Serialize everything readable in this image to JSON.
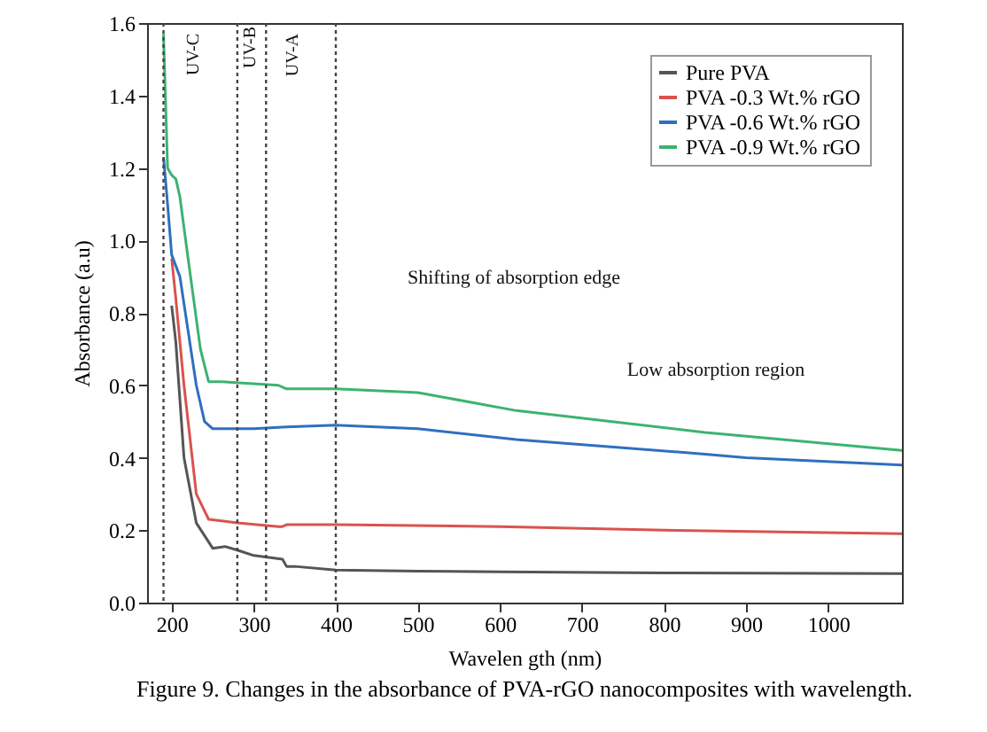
{
  "chart_data": {
    "type": "line",
    "title": "Figure 9. Changes in the absorbance of PVA-rGO nanocomposites with wavelength.",
    "xlabel": "Wavelen gth (nm)",
    "ylabel": "Absorbance (a.u)",
    "xlim": [
      170,
      1090
    ],
    "xticks": [
      200,
      300,
      400,
      500,
      600,
      700,
      800,
      900,
      1000
    ],
    "ylim": [
      0,
      1.6
    ],
    "yticks": [
      {
        "value": 0,
        "label": "0.0"
      },
      0.2,
      0.4,
      0.6,
      0.8,
      {
        "value": 1,
        "label": "1.0"
      },
      1.2,
      1.4,
      1.6
    ],
    "legend": "top right",
    "grid": false,
    "marker": "none",
    "line_style": "solid",
    "ref_lines": [
      {
        "axis": "x",
        "value": 190,
        "label": null,
        "line_style": "dotted"
      },
      {
        "axis": "x",
        "value": 280,
        "label": null,
        "line_style": "dotted"
      },
      {
        "axis": "x",
        "value": 315,
        "label": null,
        "line_style": "dotted"
      },
      {
        "axis": "x",
        "value": 400,
        "label": null,
        "line_style": "dotted"
      }
    ],
    "annotations": [
      "UV-C",
      "UV-B",
      "UV-A",
      "Shifting of absorption edge",
      "Low absorption region"
    ],
    "series": [
      {
        "name": "Pure PVA",
        "color": "#555555",
        "x": [
          200,
          205,
          215,
          230,
          250,
          265,
          280,
          300,
          335,
          340,
          350,
          400,
          500,
          600,
          800,
          1090
        ],
        "values": [
          0.82,
          0.72,
          0.4,
          0.22,
          0.15,
          0.155,
          0.145,
          0.13,
          0.12,
          0.1,
          0.1,
          0.09,
          0.087,
          0.085,
          0.082,
          0.08
        ]
      },
      {
        "name": "PVA -0.3 Wt.% rGO",
        "color": "#d9534f",
        "x": [
          200,
          205,
          215,
          230,
          245,
          280,
          330,
          335,
          340,
          400,
          600,
          800,
          1090
        ],
        "values": [
          0.95,
          0.84,
          0.6,
          0.3,
          0.23,
          0.22,
          0.21,
          0.21,
          0.215,
          0.215,
          0.21,
          0.2,
          0.19
        ]
      },
      {
        "name": "PVA -0.6 Wt.% rGO",
        "color": "#2f6fbf",
        "x": [
          190,
          195,
          200,
          205,
          210,
          220,
          230,
          240,
          250,
          300,
          340,
          400,
          500,
          620,
          850,
          900,
          1090
        ],
        "values": [
          1.23,
          1.1,
          0.96,
          0.93,
          0.9,
          0.75,
          0.6,
          0.5,
          0.48,
          0.48,
          0.485,
          0.49,
          0.48,
          0.45,
          0.41,
          0.4,
          0.38
        ]
      },
      {
        "name": "PVA -0.9 Wt.% rGO",
        "color": "#3cb371",
        "x": [
          190,
          195,
          200,
          205,
          210,
          220,
          235,
          245,
          260,
          330,
          340,
          400,
          500,
          620,
          850,
          1090
        ],
        "values": [
          1.57,
          1.2,
          1.18,
          1.17,
          1.12,
          0.95,
          0.7,
          0.61,
          0.61,
          0.6,
          0.59,
          0.59,
          0.58,
          0.53,
          0.47,
          0.42
        ]
      }
    ]
  }
}
